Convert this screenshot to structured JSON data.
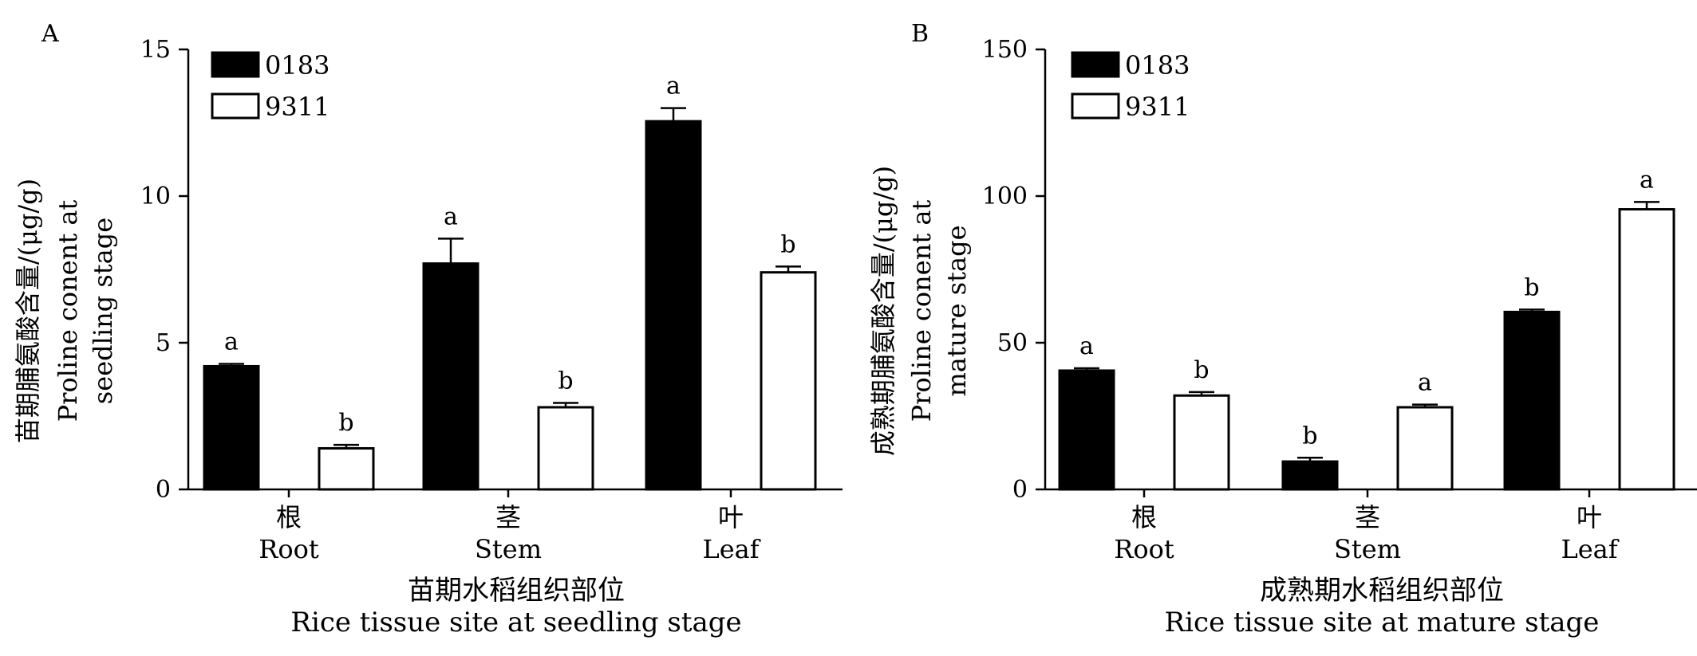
{
  "chart_data": [
    {
      "panel": "A",
      "type": "bar",
      "categories": [
        {
          "zh": "根",
          "en": "Root"
        },
        {
          "zh": "茎",
          "en": "Stem"
        },
        {
          "zh": "叶",
          "en": "Leaf"
        }
      ],
      "series": [
        {
          "name": "0183",
          "color": "#000000",
          "values": [
            4.2,
            7.7,
            12.55
          ],
          "errors": [
            0.08,
            0.85,
            0.45
          ],
          "letters": [
            "a",
            "a",
            "a"
          ]
        },
        {
          "name": "9311",
          "color": "#ffffff",
          "values": [
            1.4,
            2.8,
            7.4
          ],
          "errors": [
            0.12,
            0.15,
            0.2
          ],
          "letters": [
            "b",
            "b",
            "b"
          ]
        }
      ],
      "ylim": [
        0,
        15
      ],
      "yticks": [
        0,
        5,
        10,
        15
      ],
      "ylabel_zh": "苗期脯氨酸含量/(μg/g)",
      "ylabel_en": [
        "Proline conent at",
        "seedling stage"
      ],
      "xlabel_zh": "苗期水稻组织部位",
      "xlabel_en": "Rice tissue site at seedling stage",
      "legend_position": "top-left",
      "grid": false
    },
    {
      "panel": "B",
      "type": "bar",
      "categories": [
        {
          "zh": "根",
          "en": "Root"
        },
        {
          "zh": "茎",
          "en": "Stem"
        },
        {
          "zh": "叶",
          "en": "Leaf"
        }
      ],
      "series": [
        {
          "name": "0183",
          "color": "#000000",
          "values": [
            40.5,
            9.5,
            60.5
          ],
          "errors": [
            0.8,
            1.3,
            0.8
          ],
          "letters": [
            "a",
            "b",
            "b"
          ]
        },
        {
          "name": "9311",
          "color": "#ffffff",
          "values": [
            32,
            28,
            95.5
          ],
          "errors": [
            1.2,
            0.9,
            2.5
          ],
          "letters": [
            "b",
            "a",
            "a"
          ]
        }
      ],
      "ylim": [
        0,
        150
      ],
      "yticks": [
        0,
        50,
        100,
        150
      ],
      "ylabel_zh": "成熟期脯氨酸含量/(μg/g)",
      "ylabel_en": [
        "Proline conent at",
        "mature stage"
      ],
      "xlabel_zh": "成熟期水稻组织部位",
      "xlabel_en": "Rice tissue site at mature stage",
      "legend_position": "top-left",
      "grid": false
    }
  ]
}
